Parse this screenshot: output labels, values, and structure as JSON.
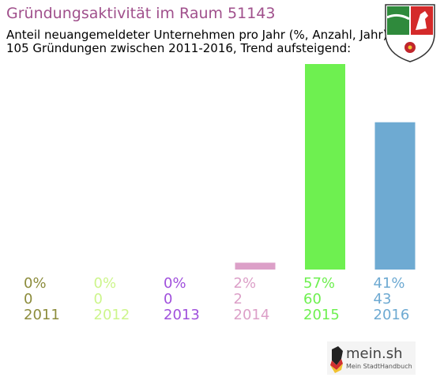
{
  "header": {
    "title": "Gründungsaktivität im Raum 51143",
    "subtitle_line1": "Anteil neuangemeldeter Unternehmen pro Jahr (%, Anzahl, Jahr)",
    "subtitle_line2": "105 Gründungen zwischen 2011-2016, Trend aufsteigend:"
  },
  "crest": {
    "icon": "nrw-coat-of-arms-icon"
  },
  "logo": {
    "name": "mein.sh",
    "tagline": "Mein StadtHandbuch",
    "icon": "map-pin-germany-icon"
  },
  "chart_data": {
    "type": "bar",
    "categories": [
      "2011",
      "2012",
      "2013",
      "2014",
      "2015",
      "2016"
    ],
    "values": [
      0,
      0,
      0,
      2,
      60,
      43
    ],
    "percent_labels": [
      "0%",
      "0%",
      "0%",
      "2%",
      "57%",
      "41%"
    ],
    "colors": [
      "#8c8c3c",
      "#cdf58c",
      "#a050dc",
      "#dca0c8",
      "#6ef050",
      "#6eaad2"
    ],
    "ylim": [
      0,
      60
    ],
    "grid": false,
    "legend": "none"
  }
}
